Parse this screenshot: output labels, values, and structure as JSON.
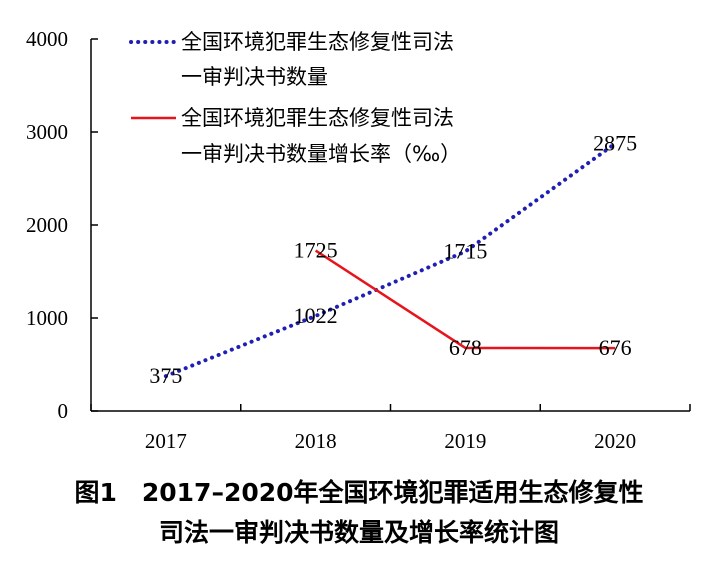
{
  "chart_data": {
    "type": "line",
    "categories": [
      "2017",
      "2018",
      "2019",
      "2020"
    ],
    "series": [
      {
        "name": "全国环境犯罪生态修复性司法一审判决书数量",
        "legend_lines": [
          "全国环境犯罪生态修复性司法",
          "一审判决书数量"
        ],
        "values": [
          375,
          1022,
          1715,
          2875
        ],
        "labels": [
          "375",
          "1022",
          "1715",
          "2875"
        ],
        "color": "#1f1fb4",
        "style": "dotted"
      },
      {
        "name": "全国环境犯罪生态修复性司法一审判决书数量增长率（‰）",
        "legend_lines": [
          "全国环境犯罪生态修复性司法",
          "一审判决书数量增长率（‰）"
        ],
        "values": [
          null,
          1725,
          678,
          676
        ],
        "labels": [
          "",
          "1725",
          "678",
          "676"
        ],
        "color": "#e8141c",
        "style": "solid"
      }
    ],
    "ylim": [
      0,
      4000
    ],
    "yticks": [
      "0",
      "1000",
      "2000",
      "3000",
      "4000"
    ],
    "grid": false,
    "legend_position": "top-left",
    "caption_lines": [
      "图1　2017–2020年全国环境犯罪适用生态修复性",
      "司法一审判决书数量及增长率统计图"
    ]
  }
}
